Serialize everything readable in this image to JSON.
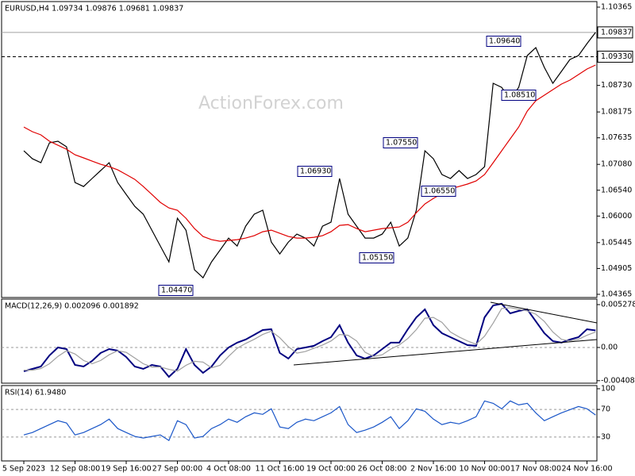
{
  "chart_data": [
    {
      "type": "line",
      "title": "EURUSD,H4 1.09734 1.09876 1.09681 1.09837",
      "watermark": "ActionForex.com",
      "categories": [
        "5 Sep 2023",
        null,
        null,
        null,
        null,
        null,
        "12 Sep 08:00",
        null,
        null,
        null,
        null,
        null,
        "19 Sep 16:00",
        null,
        null,
        null,
        null,
        null,
        "27 Sep 00:00",
        null,
        null,
        null,
        null,
        null,
        "4 Oct 08:00",
        null,
        null,
        null,
        null,
        null,
        "11 Oct 16:00",
        null,
        null,
        null,
        null,
        null,
        "19 Oct 00:00",
        null,
        null,
        null,
        null,
        null,
        "26 Oct 08:00",
        null,
        null,
        null,
        null,
        null,
        "2 Nov 16:00",
        null,
        null,
        null,
        null,
        null,
        "10 Nov 00:00",
        null,
        null,
        null,
        null,
        null,
        "17 Nov 08:00",
        null,
        null,
        null,
        null,
        null,
        "24 Nov 16:00",
        null
      ],
      "ylim": [
        1.04315,
        1.10481
      ],
      "yticks": [
        1.10365,
        {
          "value": 1.0873,
          "label": "1.08730"
        },
        1.08175,
        1.07635,
        {
          "value": 1.0708,
          "label": "1.07080"
        },
        {
          "value": 1.0654,
          "label": "1.06540"
        },
        {
          "value": 1.06,
          "label": "1.06000"
        },
        1.05445,
        1.04905,
        1.04365
      ],
      "price_lines": [
        {
          "value": 1.09837,
          "label": "1.09837",
          "style": "solid",
          "color": "#a0a0a0"
        },
        {
          "value": 1.0933,
          "label": "1.09330",
          "style": "dashed",
          "color": "#000000"
        }
      ],
      "annotations": [
        "1.09640",
        "1.08510",
        "1.07550",
        "1.06930",
        "1.06550",
        "1.05150",
        "1.04470"
      ],
      "series": [
        {
          "name": "EURUSD",
          "color": "#000000",
          "values": [
            1.07364,
            1.07198,
            1.07115,
            1.0753,
            1.07563,
            1.07447,
            1.06701,
            1.06618,
            1.06784,
            1.0695,
            1.07115,
            1.06701,
            1.06452,
            1.06203,
            1.06038,
            1.05706,
            1.05374,
            1.05043,
            1.05955,
            1.05706,
            1.04877,
            1.04711,
            1.05043,
            1.05292,
            1.0554,
            1.05374,
            1.05789,
            1.06038,
            1.06121,
            1.05457,
            1.05209,
            1.05457,
            1.05623,
            1.0554,
            1.05374,
            1.05789,
            1.05872,
            1.06784,
            1.06038,
            1.05789,
            1.0554,
            1.0554,
            1.05623,
            1.05872,
            1.05374,
            1.0554,
            1.06121,
            1.07364,
            1.07198,
            1.06867,
            1.06784,
            1.0695,
            1.06784,
            1.06867,
            1.07032,
            1.08773,
            1.0869,
            1.08442,
            1.0869,
            1.09354,
            1.09519,
            1.09105,
            1.08773,
            1.09022,
            1.09271,
            1.09354,
            1.09602,
            1.09837
          ]
        },
        {
          "name": "MA",
          "color": "#e00000",
          "values": [
            1.07861,
            1.07762,
            1.07696,
            1.07563,
            1.0748,
            1.07397,
            1.07281,
            1.07215,
            1.07148,
            1.07082,
            1.07032,
            1.06966,
            1.06867,
            1.06767,
            1.06618,
            1.06452,
            1.06286,
            1.0617,
            1.06121,
            1.05955,
            1.05739,
            1.05573,
            1.05507,
            1.05474,
            1.0549,
            1.05507,
            1.0554,
            1.0559,
            1.05673,
            1.05706,
            1.0564,
            1.05573,
            1.0554,
            1.0554,
            1.05557,
            1.0559,
            1.05673,
            1.05805,
            1.05822,
            1.05739,
            1.05673,
            1.05706,
            1.05739,
            1.05756,
            1.05772,
            1.05872,
            1.06071,
            1.06253,
            1.06369,
            1.06469,
            1.06568,
            1.06618,
            1.06668,
            1.06734,
            1.06867,
            1.07115,
            1.07364,
            1.07613,
            1.07861,
            1.08193,
            1.08409,
            1.08525,
            1.08641,
            1.08757,
            1.0884,
            1.08956,
            1.09072,
            1.09155
          ]
        }
      ]
    },
    {
      "type": "line",
      "title": "MACD(12,26,9) 0.002096 0.001892",
      "ylim": [
        -0.0043,
        0.00586
      ],
      "yticks": [
        0.005278,
        {
          "value": 0,
          "label": "0.00"
        },
        -0.004087
      ],
      "levels": [
        0
      ],
      "series": [
        {
          "name": "MACD",
          "color": "#000080",
          "values": [
            -0.00293,
            -0.00264,
            -0.00235,
            -0.00098,
            0,
            -0.0002,
            -0.00215,
            -0.00235,
            -0.00166,
            -0.00068,
            -0.0002,
            -0.00039,
            -0.00117,
            -0.00235,
            -0.00264,
            -0.00215,
            -0.00235,
            -0.00362,
            -0.00264,
            -0.0002,
            -0.00215,
            -0.00313,
            -0.00235,
            -0.00098,
            0,
            0.00059,
            0.00098,
            0.00156,
            0.00215,
            0.00225,
            -0.00068,
            -0.00137,
            -0.0002,
            0,
            0.0002,
            0.00078,
            0.00127,
            0.00274,
            0.00059,
            -0.00098,
            -0.00137,
            -0.00098,
            -0.0002,
            0.00059,
            0.00059,
            0.00225,
            0.00371,
            0.00469,
            0.00274,
            0.00176,
            0.00127,
            0.00078,
            0.00029,
            0.0002,
            0.00371,
            0.00518,
            0.00538,
            0.0042,
            0.0045,
            0.00469,
            0.00323,
            0.00176,
            0.00078,
            0.00059,
            0.00098,
            0.00127,
            0.00225,
            0.002096
          ]
        },
        {
          "name": "Signal",
          "color": "#a0a0a0",
          "values": [
            -0.0028,
            -0.0028,
            -0.0026,
            -0.002,
            -0.0011,
            -0.0004,
            -0.0008,
            -0.0016,
            -0.002,
            -0.0016,
            -0.0009,
            -0.0004,
            -0.0006,
            -0.0013,
            -0.002,
            -0.0024,
            -0.0024,
            -0.0027,
            -0.0029,
            -0.0022,
            -0.0017,
            -0.0018,
            -0.0025,
            -0.0022,
            -0.0011,
            -0.0001,
            0.0005,
            0.001,
            0.0016,
            0.002,
            0.0012,
            0.0001,
            -0.0007,
            -0.0005,
            -0.0001,
            0.0003,
            0.0008,
            0.0016,
            0.0015,
            0.0008,
            -0.0006,
            -0.0011,
            -0.0009,
            -0.0002,
            0.0003,
            0.0011,
            0.0022,
            0.0036,
            0.0037,
            0.0031,
            0.0019,
            0.0013,
            0.0008,
            0.0004,
            0.0014,
            0.003,
            0.0048,
            0.0049,
            0.0047,
            0.0045,
            0.0041,
            0.0032,
            0.0019,
            0.001,
            0.0008,
            0.001,
            0.0015,
            0.001892
          ]
        }
      ]
    },
    {
      "type": "line",
      "title": "RSI(14) 61.9480",
      "ylim": [
        0,
        100
      ],
      "yticks": [
        100,
        70,
        30
      ],
      "levels": [
        70,
        30
      ],
      "series": [
        {
          "name": "RSI",
          "color": "#1a56c8",
          "values": [
            33.1,
            36.6,
            42.3,
            48,
            53.7,
            50.3,
            33.1,
            36.6,
            42.3,
            48,
            56,
            42.3,
            36.6,
            30.9,
            28.6,
            30.9,
            33.1,
            25.1,
            53.7,
            48,
            28.6,
            30.9,
            42.3,
            48,
            56,
            51.4,
            59.4,
            65.1,
            62.9,
            70.9,
            44.6,
            42.3,
            51.4,
            56,
            53.7,
            59.4,
            65.1,
            74.3,
            48,
            36.6,
            40,
            44.6,
            51.4,
            59.4,
            42.3,
            53.7,
            70.9,
            67.4,
            56,
            48,
            51.4,
            49.1,
            53.7,
            59.4,
            82.3,
            78.9,
            70.9,
            82.3,
            76.6,
            78.9,
            65.1,
            53.7,
            59.4,
            65.1,
            69.7,
            74.3,
            70.9,
            61.948
          ]
        }
      ]
    }
  ]
}
